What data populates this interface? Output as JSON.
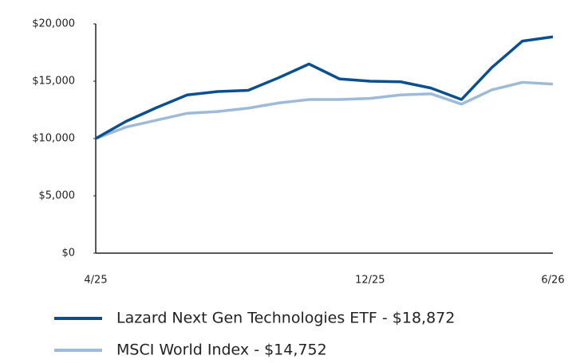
{
  "chart_data": {
    "type": "line",
    "categories": [
      "4/25",
      null,
      null,
      null,
      null,
      null,
      null,
      null,
      null,
      "12/25",
      null,
      null,
      null,
      null,
      null,
      "6/26"
    ],
    "series": [
      {
        "name": "Lazard Next Gen Technologies ETF - $18,872",
        "color": "#0b4f8f",
        "values": [
          10000,
          11500,
          12700,
          13800,
          14100,
          14200,
          15300,
          16500,
          15200,
          15000,
          14950,
          14400,
          13400,
          16200,
          18500,
          18872
        ]
      },
      {
        "name": "MSCI World Index - $14,752",
        "color": "#9dbbd9",
        "values": [
          10000,
          11000,
          11600,
          12200,
          12350,
          12650,
          13100,
          13400,
          13400,
          13500,
          13800,
          13900,
          13000,
          14250,
          14900,
          14752
        ]
      }
    ],
    "ylim": [
      0,
      20000
    ],
    "yticks": [
      {
        "value": 0,
        "label": "$0"
      },
      {
        "value": 5000,
        "label": "$5,000"
      },
      {
        "value": 10000,
        "label": "$10,000"
      },
      {
        "value": 15000,
        "label": "$15,000"
      },
      {
        "value": 20000,
        "label": "$20,000"
      }
    ]
  }
}
